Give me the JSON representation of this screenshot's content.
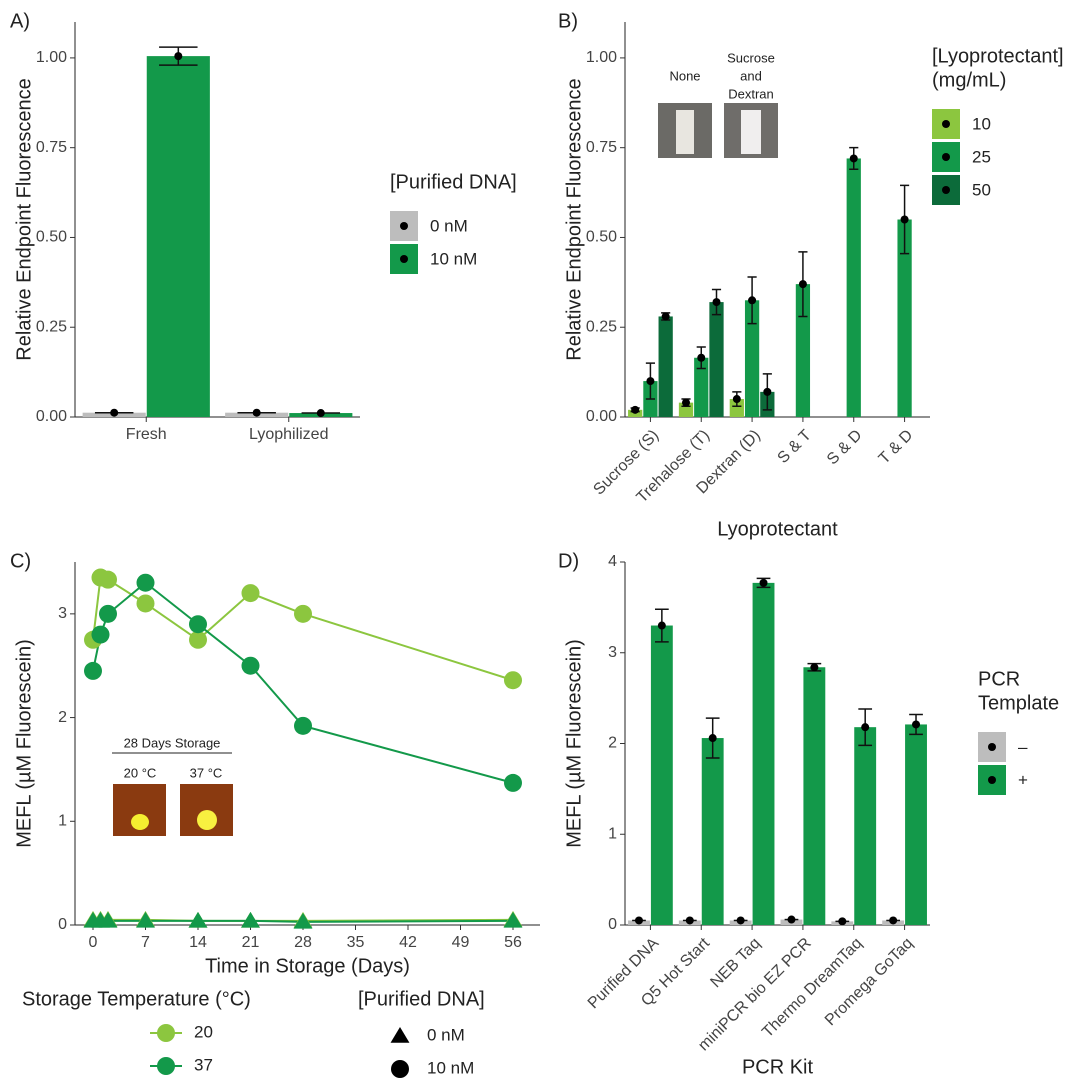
{
  "chart_data": [
    {
      "panel": "A)",
      "type": "bar",
      "ylabel": "Relative Endpoint Fluorescence",
      "categories": [
        "Fresh",
        "Lyophilized"
      ],
      "series": [
        {
          "name": "0 nM",
          "color": "#bdbdbd",
          "values": [
            0.012,
            0.012
          ],
          "errors": [
            null,
            null
          ]
        },
        {
          "name": "10 nM",
          "color": "#13994a",
          "values": [
            1.005,
            0.011
          ],
          "errors": [
            0.025,
            null
          ]
        }
      ],
      "ylim": [
        0,
        1.1
      ],
      "yticks": [
        {
          "value": 0,
          "label": "0.00"
        },
        0.25,
        {
          "value": 0.5,
          "label": "0.50"
        },
        0.75,
        {
          "value": 1,
          "label": "1.00"
        }
      ],
      "legend_title": [
        "[Purified DNA]"
      ]
    },
    {
      "panel": "B)",
      "type": "bar",
      "ylabel": "Relative Endpoint Fluorescence",
      "xlabel": "Lyoprotectant",
      "categories": [
        "Sucrose (S)",
        "Trehalose (T)",
        "Dextran (D)",
        "S & T",
        "S & D",
        "T & D"
      ],
      "series": [
        {
          "name": "10",
          "color": "#8cc63f",
          "values": [
            0.02,
            0.04,
            0.05,
            null,
            null,
            null
          ],
          "errors": [
            0.005,
            0.01,
            0.02,
            null,
            null,
            null
          ]
        },
        {
          "name": "25",
          "color": "#13994a",
          "values": [
            0.1,
            0.165,
            0.325,
            0.37,
            0.72,
            0.55
          ],
          "errors": [
            0.05,
            0.03,
            0.065,
            0.09,
            0.03,
            0.095
          ]
        },
        {
          "name": "50",
          "color": "#0c6b3a",
          "values": [
            0.28,
            0.32,
            0.07,
            null,
            null,
            null
          ],
          "errors": [
            0.01,
            0.035,
            0.05,
            null,
            null,
            null
          ]
        }
      ],
      "ylim": [
        0,
        1.1
      ],
      "yticks": [
        {
          "value": 0,
          "label": "0.00"
        },
        0.25,
        {
          "value": 0.5,
          "label": "0.50"
        },
        0.75,
        {
          "value": 1,
          "label": "1.00"
        }
      ],
      "legend_title": [
        "[Lyoprotectant]",
        "(mg/mL)"
      ],
      "annotations": [
        "None",
        [
          "Sucrose",
          "and",
          "Dextran"
        ]
      ]
    },
    {
      "panel": "C)",
      "type": "line",
      "ylabel": "MEFL (µM Fluorescein)",
      "xlabel": "Time in Storage (Days)",
      "x": [
        0,
        1,
        2,
        7,
        14,
        21,
        28,
        56
      ],
      "series": [
        {
          "color": "#8cc63f",
          "marker": "triangle",
          "values": [
            0.05,
            0.05,
            0.05,
            0.05,
            0.04,
            0.04,
            0.04,
            0.05
          ]
        },
        {
          "color": "#13994a",
          "marker": "triangle",
          "values": [
            0.04,
            0.04,
            0.04,
            0.04,
            0.04,
            0.04,
            0.03,
            0.04
          ]
        },
        {
          "color": "#8cc63f",
          "marker": "circle",
          "values": [
            2.75,
            3.35,
            3.33,
            3.1,
            2.75,
            3.2,
            3.0,
            2.36
          ]
        },
        {
          "color": "#13994a",
          "marker": "circle",
          "values": [
            2.45,
            2.8,
            3.0,
            3.3,
            2.9,
            2.5,
            1.92,
            1.37
          ]
        }
      ],
      "xlim": [
        -2.4,
        59.6
      ],
      "xticks": [
        0,
        7,
        14,
        21,
        28,
        35,
        42,
        49,
        56
      ],
      "ylim": [
        0,
        3.5
      ],
      "yticks": [
        0,
        1,
        2,
        3
      ],
      "legends": [
        {
          "title": "Storage Temperature (°C)",
          "entries": [
            "20",
            "37"
          ],
          "colors": [
            "#8cc63f",
            "#13994a"
          ]
        },
        {
          "title": "[Purified DNA]",
          "entries": [
            "0 nM",
            "10 nM"
          ],
          "markers": [
            "triangle",
            "circle"
          ]
        }
      ],
      "annotations": [
        "28 Days Storage",
        "20 °C",
        "37 °C"
      ]
    },
    {
      "panel": "D)",
      "type": "bar",
      "ylabel": "MEFL (µM Fluorescein)",
      "xlabel": "PCR Kit",
      "categories": [
        "Purified DNA",
        "Q5 Hot Start",
        "NEB Taq",
        "miniPCR bio EZ PCR",
        "Thermo DreamTaq",
        "Promega GoTaq"
      ],
      "series": [
        {
          "name": "–",
          "color": "#bdbdbd",
          "values": [
            0.05,
            0.05,
            0.05,
            0.06,
            0.04,
            0.05
          ],
          "errors": [
            null,
            null,
            null,
            null,
            null,
            null
          ]
        },
        {
          "name": "+",
          "color": "#13994a",
          "values": [
            3.3,
            2.06,
            3.77,
            2.84,
            2.18,
            2.21
          ],
          "errors": [
            0.18,
            0.22,
            0.05,
            0.04,
            0.2,
            0.11
          ]
        }
      ],
      "ylim": [
        0,
        4
      ],
      "yticks": [
        0,
        1,
        2,
        3,
        4
      ],
      "legend_title": [
        "PCR",
        "Template"
      ]
    }
  ]
}
